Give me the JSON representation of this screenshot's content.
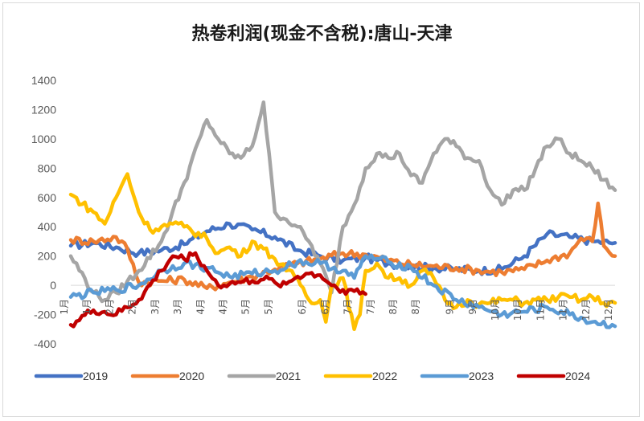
{
  "chart_data": {
    "type": "line",
    "title": "热卷利润(现金不含税):唐山-天津",
    "xlabel": "",
    "ylabel": "",
    "ylim": [
      -400,
      1400
    ],
    "yticks": [
      -400,
      -200,
      0,
      200,
      400,
      600,
      800,
      1000,
      1200,
      1400
    ],
    "gridlines": false,
    "legend_position": "bottom",
    "x_ticks": [
      {
        "label": "1月",
        "week": 0
      },
      {
        "label": "1月",
        "week": 2
      },
      {
        "label": "2月",
        "week": 4
      },
      {
        "label": "2月",
        "week": 6
      },
      {
        "label": "3月",
        "week": 8
      },
      {
        "label": "3月",
        "week": 10
      },
      {
        "label": "4月",
        "week": 12
      },
      {
        "label": "4月",
        "week": 14
      },
      {
        "label": "5月",
        "week": 16
      },
      {
        "label": "5月",
        "week": 18
      },
      {
        "label": "6月",
        "week": 21
      },
      {
        "label": "6月",
        "week": 23
      },
      {
        "label": "7月",
        "week": 25
      },
      {
        "label": "7月",
        "week": 27
      },
      {
        "label": "8月",
        "week": 29
      },
      {
        "label": "8月",
        "week": 31
      },
      {
        "label": "9月",
        "week": 34
      },
      {
        "label": "9月",
        "week": 36
      },
      {
        "label": "10月",
        "week": 38
      },
      {
        "label": "10月",
        "week": 40
      },
      {
        "label": "11月",
        "week": 42
      },
      {
        "label": "11月",
        "week": 44
      },
      {
        "label": "12月",
        "week": 46
      },
      {
        "label": "12月",
        "week": 48
      }
    ],
    "series": [
      {
        "name": "2019",
        "color": "#4472c4",
        "x": [
          0,
          2,
          4,
          6,
          8,
          10,
          12,
          14,
          16,
          18,
          20,
          22,
          24,
          26,
          28,
          30,
          32,
          34,
          36,
          38,
          40,
          42,
          44,
          46,
          48
        ],
        "values": [
          270,
          290,
          260,
          220,
          240,
          280,
          370,
          420,
          380,
          330,
          240,
          200,
          170,
          190,
          150,
          130,
          120,
          110,
          100,
          110,
          200,
          350,
          330,
          300,
          290
        ]
      },
      {
        "name": "2020",
        "color": "#ed7d31",
        "x": [
          0,
          2,
          4,
          5,
          6,
          8,
          10,
          12,
          14,
          16,
          18,
          20,
          22,
          24,
          26,
          28,
          30,
          32,
          34,
          36,
          38,
          40,
          42,
          44,
          45,
          46,
          46.5,
          47,
          48
        ],
        "values": [
          310,
          300,
          330,
          250,
          20,
          30,
          40,
          -20,
          20,
          60,
          110,
          150,
          180,
          220,
          210,
          170,
          140,
          130,
          120,
          100,
          90,
          110,
          170,
          220,
          320,
          300,
          560,
          270,
          200
        ]
      },
      {
        "name": "2021",
        "color": "#a5a5a5",
        "x": [
          0,
          2,
          3,
          4,
          6,
          8,
          10,
          12,
          13,
          14,
          15,
          16,
          17,
          18,
          19,
          20,
          21,
          22,
          23,
          24,
          25,
          26,
          27,
          28,
          29,
          30,
          31,
          32,
          33,
          34,
          35,
          36,
          37,
          38,
          39,
          40,
          41,
          42,
          43,
          44,
          45,
          46,
          47,
          48
        ],
        "values": [
          200,
          -50,
          -100,
          -50,
          100,
          300,
          700,
          1130,
          1000,
          900,
          870,
          950,
          1250,
          500,
          450,
          400,
          300,
          150,
          -50,
          400,
          550,
          800,
          900,
          870,
          900,
          750,
          700,
          900,
          1000,
          950,
          870,
          850,
          650,
          550,
          650,
          650,
          800,
          950,
          1000,
          900,
          850,
          800,
          720,
          650
        ]
      },
      {
        "name": "2022",
        "color": "#ffc000",
        "x": [
          0,
          2,
          3,
          4,
          5,
          6,
          7,
          8,
          9,
          10,
          12,
          13,
          14,
          15,
          16,
          17,
          18,
          19,
          20,
          21,
          22,
          22.5,
          23,
          24,
          25,
          25.5,
          26,
          27,
          28,
          29,
          30,
          31,
          32,
          33,
          34,
          35,
          36,
          37,
          38,
          39,
          40,
          41,
          42,
          43,
          44,
          45,
          46,
          47,
          48
        ],
        "values": [
          620,
          500,
          420,
          600,
          760,
          500,
          380,
          400,
          420,
          400,
          320,
          220,
          260,
          200,
          300,
          250,
          180,
          100,
          50,
          -100,
          -100,
          -250,
          0,
          50,
          -300,
          -200,
          100,
          150,
          50,
          50,
          0,
          100,
          50,
          -100,
          -150,
          -100,
          -130,
          -120,
          -100,
          -100,
          -120,
          -100,
          -100,
          -80,
          -80,
          -100,
          -80,
          -120,
          -120
        ]
      },
      {
        "name": "2023",
        "color": "#5b9bd5",
        "x": [
          0,
          2,
          4,
          6,
          8,
          10,
          12,
          14,
          16,
          18,
          20,
          22,
          24,
          25,
          26,
          28,
          30,
          32,
          34,
          36,
          38,
          40,
          42,
          44,
          46,
          48
        ],
        "values": [
          -80,
          -50,
          -30,
          0,
          100,
          150,
          120,
          60,
          80,
          100,
          160,
          150,
          100,
          50,
          200,
          160,
          120,
          0,
          -100,
          -150,
          -200,
          -180,
          -150,
          -200,
          -250,
          -280
        ]
      },
      {
        "name": "2024",
        "color": "#c00000",
        "x": [
          0,
          2,
          4,
          6,
          8,
          9,
          10,
          11,
          12,
          13,
          14,
          15,
          16,
          17,
          18,
          19,
          20,
          21,
          22,
          23,
          24,
          25,
          26
        ],
        "values": [
          -270,
          -170,
          -200,
          -100,
          100,
          200,
          180,
          220,
          100,
          0,
          10,
          20,
          30,
          40,
          20,
          10,
          60,
          80,
          70,
          0,
          -30,
          -40,
          -60
        ]
      }
    ]
  }
}
